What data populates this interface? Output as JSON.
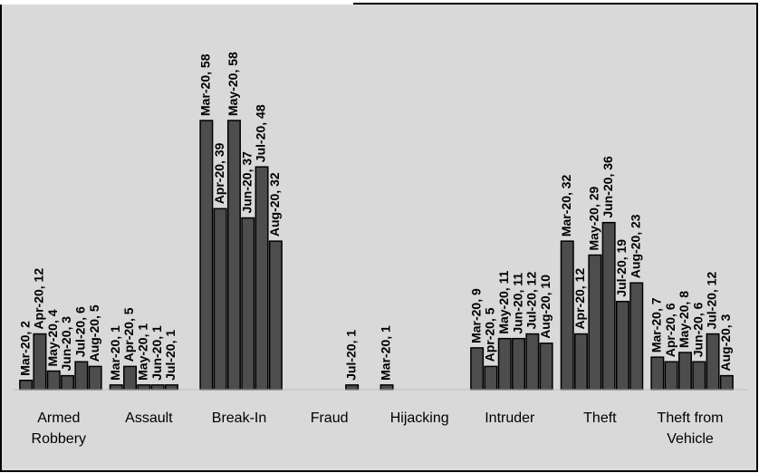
{
  "chart_data": {
    "type": "bar",
    "categories": [
      "Armed Robbery",
      "Assault",
      "Break-In",
      "Fraud",
      "Hijacking",
      "Intruder",
      "Theft",
      "Theft from Vehicle"
    ],
    "series": [
      {
        "name": "Mar-20",
        "color": "#4d4d4d",
        "values": [
          2,
          1,
          58,
          null,
          1,
          9,
          32,
          7
        ],
        "value_labels": [
          "Mar-20, 2",
          "Mar-20, 1",
          "Mar-20, 58",
          null,
          "Mar-20, 1",
          "Mar-20, 9",
          "Mar-20, 32",
          "Mar-20, 7"
        ]
      },
      {
        "name": "Apr-20",
        "color": "#4d4d4d",
        "values": [
          12,
          5,
          39,
          null,
          null,
          5,
          12,
          6
        ],
        "value_labels": [
          "Apr-20, 12",
          "Apr-20, 5",
          "Apr-20, 39",
          null,
          null,
          "Apr-20, 5",
          "Apr-20, 12",
          "Apr-20, 6"
        ]
      },
      {
        "name": "May-20",
        "color": "#4d4d4d",
        "values": [
          4,
          1,
          58,
          null,
          null,
          11,
          29,
          8
        ],
        "value_labels": [
          "May-20, 4",
          "May-20, 1",
          "May-20, 58",
          null,
          null,
          "May-20, 11",
          "May-20, 29",
          "May-20, 8"
        ]
      },
      {
        "name": "Jun-20",
        "color": "#4d4d4d",
        "values": [
          3,
          1,
          37,
          null,
          null,
          11,
          36,
          6
        ],
        "value_labels": [
          "Jun-20, 3",
          "Jun-20, 1",
          "Jun-20, 37",
          null,
          null,
          "Jun-20, 11",
          "Jun-20, 36",
          "Jun-20, 6"
        ]
      },
      {
        "name": "Jul-20",
        "color": "#4d4d4d",
        "values": [
          6,
          1,
          48,
          1,
          null,
          12,
          19,
          12
        ],
        "value_labels": [
          "Jul-20, 6",
          "Jul-20, 1",
          "Jul-20, 48",
          "Jul-20, 1",
          null,
          "Jul-20, 12",
          "Jul-20, 19",
          "Jul-20, 12"
        ]
      },
      {
        "name": "Aug-20",
        "color": "#4d4d4d",
        "values": [
          5,
          null,
          32,
          null,
          null,
          10,
          23,
          3
        ],
        "value_labels": [
          "Aug-20, 5",
          null,
          "Aug-20, 32",
          null,
          null,
          "Aug-20, 10",
          "Aug-20, 23",
          "Aug-20, 3"
        ]
      }
    ]
  }
}
